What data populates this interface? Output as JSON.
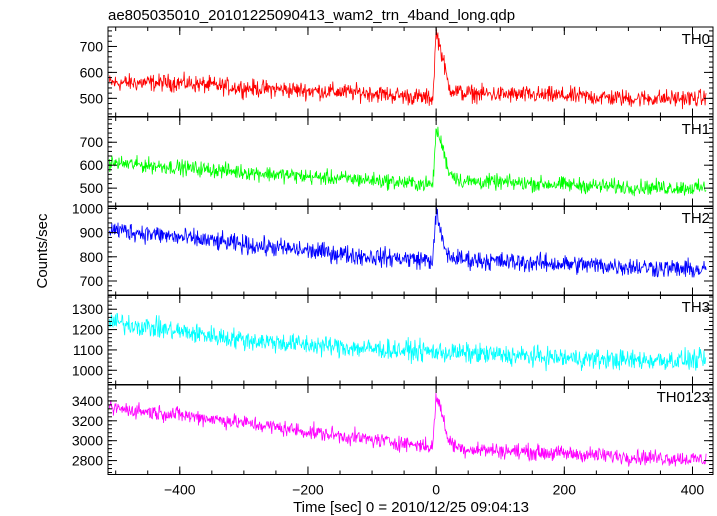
{
  "chart_data": {
    "type": "line",
    "title": "ae805035010_20101225090413_wam2_trn_4band_long.qdp",
    "xlabel": "Time [sec] 0 = 2010/12/25 09:04:13",
    "ylabel": "Counts/sec",
    "xlim": [
      -512,
      432
    ],
    "x_ticks": [
      -400,
      -200,
      0,
      200,
      400
    ],
    "x_tick_labels": [
      "−400",
      "−200",
      "0",
      "200",
      "400"
    ],
    "panels": [
      {
        "name": "TH0",
        "color": "#ff0000",
        "ylim": [
          430,
          775
        ],
        "y_ticks": [
          500,
          600,
          700
        ],
        "y_tick_labels": [
          "500",
          "600",
          "700"
        ],
        "series": {
          "x": [
            -510,
            -400,
            -300,
            -200,
            -100,
            -30,
            -5,
            0,
            10,
            20,
            40,
            100,
            200,
            300,
            420
          ],
          "values": [
            560,
            560,
            540,
            530,
            520,
            505,
            500,
            760,
            660,
            540,
            520,
            515,
            510,
            500,
            500
          ]
        },
        "noise": 30
      },
      {
        "name": "TH1",
        "color": "#00ff00",
        "ylim": [
          420,
          810
        ],
        "y_ticks": [
          500,
          600,
          700
        ],
        "y_tick_labels": [
          "500",
          "600",
          "700"
        ],
        "series": {
          "x": [
            -510,
            -400,
            -300,
            -200,
            -100,
            -30,
            -5,
            0,
            10,
            20,
            40,
            100,
            200,
            300,
            420
          ],
          "values": [
            610,
            590,
            570,
            550,
            535,
            520,
            515,
            760,
            680,
            570,
            530,
            525,
            515,
            505,
            500
          ]
        },
        "noise": 30
      },
      {
        "name": "TH2",
        "color": "#0000ff",
        "ylim": [
          640,
          1010
        ],
        "y_ticks": [
          700,
          800,
          900,
          1000
        ],
        "y_tick_labels": [
          "700",
          "800",
          "900",
          "1000"
        ],
        "series": {
          "x": [
            -510,
            -400,
            -300,
            -200,
            -100,
            -30,
            -5,
            0,
            10,
            20,
            40,
            100,
            200,
            300,
            420
          ],
          "values": [
            915,
            880,
            850,
            825,
            800,
            790,
            785,
            990,
            860,
            800,
            790,
            780,
            770,
            760,
            745
          ]
        },
        "noise": 35
      },
      {
        "name": "TH3",
        "color": "#00ffff",
        "ylim": [
          930,
          1370
        ],
        "y_ticks": [
          1000,
          1100,
          1200,
          1300
        ],
        "y_tick_labels": [
          "1000",
          "1100",
          "1200",
          "1300"
        ],
        "series": {
          "x": [
            -510,
            -400,
            -300,
            -200,
            -100,
            0,
            100,
            200,
            300,
            420
          ],
          "values": [
            1240,
            1190,
            1150,
            1125,
            1105,
            1090,
            1075,
            1060,
            1050,
            1050
          ]
        },
        "noise": 45
      },
      {
        "name": "TH0123",
        "color": "#ff00ff",
        "ylim": [
          2660,
          3560
        ],
        "y_ticks": [
          2800,
          3000,
          3200,
          3400
        ],
        "y_tick_labels": [
          "2800",
          "3000",
          "3200",
          "3400"
        ],
        "series": {
          "x": [
            -510,
            -400,
            -300,
            -200,
            -100,
            -30,
            -5,
            0,
            10,
            20,
            40,
            100,
            200,
            300,
            420
          ],
          "values": [
            3330,
            3260,
            3180,
            3090,
            3010,
            2960,
            2940,
            3470,
            3250,
            2990,
            2920,
            2900,
            2870,
            2840,
            2810
          ]
        },
        "noise": 70
      }
    ]
  }
}
